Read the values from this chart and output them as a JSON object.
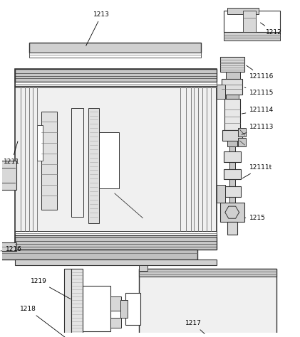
{
  "figsize": [
    4.21,
    4.74
  ],
  "dpi": 100,
  "lc": "#666666",
  "dc": "#333333",
  "gray1": "#d0d0d0",
  "gray2": "#b0b0b0",
  "gray3": "#e8e8e8",
  "white": "#ffffff",
  "bg": "#ffffff"
}
